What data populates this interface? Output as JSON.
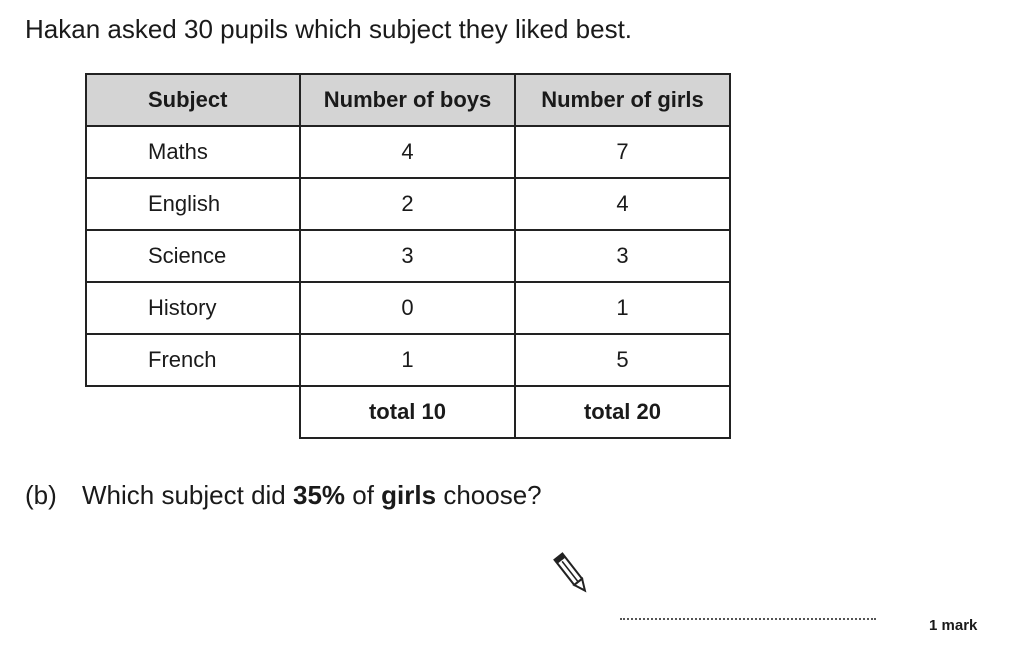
{
  "intro": "Hakan asked 30 pupils which subject they liked best.",
  "table": {
    "header": [
      "Subject",
      "Number of boys",
      "Number of girls"
    ],
    "rows": [
      [
        "Maths",
        4,
        7
      ],
      [
        "English",
        2,
        4
      ],
      [
        "Science",
        3,
        3
      ],
      [
        "History",
        0,
        1
      ],
      [
        "French",
        1,
        5
      ]
    ],
    "totals": [
      "total 10",
      "total 20"
    ]
  },
  "question": {
    "label": "(b)",
    "parts": [
      "Which subject did ",
      "35%",
      " of ",
      "girls",
      " choose?"
    ]
  },
  "mark": "1 mark"
}
